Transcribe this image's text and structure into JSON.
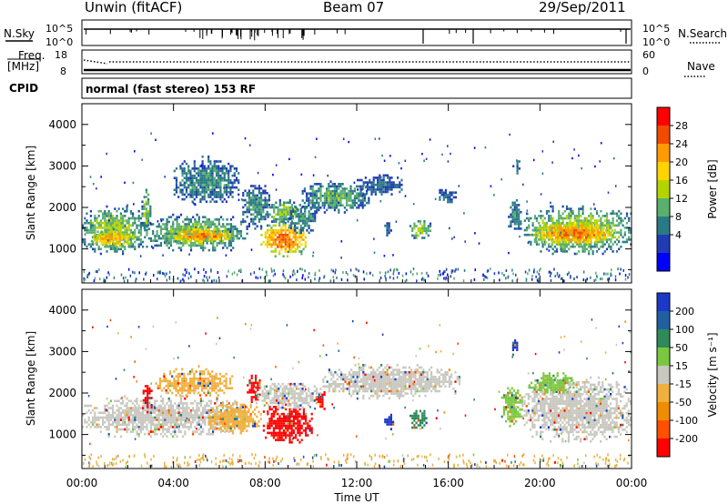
{
  "header": {
    "station": "Unwin (fitACF)",
    "beam": "Beam 07",
    "date": "29/Sep/2011"
  },
  "status_panels": {
    "nsky_label": "N.Sky",
    "nsky_ticks_left": [
      "10^5",
      "10^0"
    ],
    "nsky_ticks_right": [
      "10^5",
      "10^0"
    ],
    "nsearch_label": "N.Search",
    "freq_label": "Freq.",
    "freq_unit": "[MHz]",
    "freq_ticks": [
      "18",
      "8"
    ],
    "nave_label": "Nave",
    "nave_ticks": [
      "60",
      "0"
    ],
    "cpid_label": "CPID",
    "cpid_text": "normal (fast stereo) 153 RF"
  },
  "chart_data": [
    {
      "type": "heatmap",
      "name": "power",
      "ylabel": "Slant Range [km]",
      "yticks": [
        1000,
        2000,
        3000,
        4000
      ],
      "ylim": [
        180,
        4500
      ],
      "xlim": [
        0,
        24
      ],
      "colorbar": {
        "label": "Power [dB]",
        "ticks": [
          "28",
          "24",
          "20",
          "16",
          "12",
          "8",
          "4"
        ],
        "colors": [
          "#ff0000",
          "#f24a00",
          "#ff9a00",
          "#ffd400",
          "#b4d400",
          "#5aae6e",
          "#2a7a86",
          "#203cb4",
          "#0000ff"
        ]
      },
      "blobs": [
        {
          "t0": 0.0,
          "t1": 2.8,
          "r0": 900,
          "r1": 2050,
          "level": 14
        },
        {
          "t0": 0.3,
          "t1": 2.3,
          "r0": 1050,
          "r1": 1500,
          "level": 22
        },
        {
          "t0": 2.6,
          "t1": 2.95,
          "r0": 1400,
          "r1": 2450,
          "level": 14
        },
        {
          "t0": 2.8,
          "t1": 7.2,
          "r0": 950,
          "r1": 1850,
          "level": 13
        },
        {
          "t0": 3.8,
          "t1": 6.6,
          "r0": 1150,
          "r1": 1550,
          "level": 24
        },
        {
          "t0": 4.0,
          "t1": 6.8,
          "r0": 2100,
          "r1": 3250,
          "level": 9
        },
        {
          "t0": 7.0,
          "t1": 8.2,
          "r0": 1500,
          "r1": 2600,
          "level": 9
        },
        {
          "t0": 7.8,
          "t1": 9.8,
          "r0": 850,
          "r1": 1650,
          "level": 25
        },
        {
          "t0": 8.0,
          "t1": 9.6,
          "r0": 1650,
          "r1": 2200,
          "level": 14
        },
        {
          "t0": 9.0,
          "t1": 10.2,
          "r0": 1400,
          "r1": 2100,
          "level": 9
        },
        {
          "t0": 9.6,
          "t1": 12.5,
          "r0": 1900,
          "r1": 2650,
          "level": 11
        },
        {
          "t0": 12.0,
          "t1": 14.0,
          "r0": 2300,
          "r1": 2800,
          "level": 7
        },
        {
          "t0": 13.2,
          "t1": 13.5,
          "r0": 1350,
          "r1": 1700,
          "level": 8
        },
        {
          "t0": 14.3,
          "t1": 15.2,
          "r0": 1250,
          "r1": 1750,
          "level": 15
        },
        {
          "t0": 15.5,
          "t1": 16.3,
          "r0": 2100,
          "r1": 2500,
          "level": 7
        },
        {
          "t0": 18.6,
          "t1": 19.2,
          "r0": 1400,
          "r1": 2200,
          "level": 9
        },
        {
          "t0": 18.8,
          "t1": 19.1,
          "r0": 2800,
          "r1": 3250,
          "level": 6
        },
        {
          "t0": 19.3,
          "t1": 24.0,
          "r0": 900,
          "r1": 2050,
          "level": 15
        },
        {
          "t0": 19.7,
          "t1": 23.2,
          "r0": 1100,
          "r1": 1700,
          "level": 25
        }
      ]
    },
    {
      "type": "heatmap",
      "name": "velocity",
      "ylabel": "Slant Range [km]",
      "yticks": [
        1000,
        2000,
        3000,
        4000
      ],
      "ylim": [
        180,
        4500
      ],
      "xlim": [
        0,
        24
      ],
      "xlabel": "Time UT",
      "xticks": [
        "00:00",
        "04:00",
        "08:00",
        "12:00",
        "16:00",
        "20:00",
        "00:00"
      ],
      "colorbar": {
        "label": "Velocity [m s⁻¹]",
        "ticks": [
          "200",
          "100",
          "50",
          "15",
          "-15",
          "-50",
          "-100",
          "-200"
        ],
        "colors": [
          "#1c38c8",
          "#2060a0",
          "#2e8a5a",
          "#7ac840",
          "#c8c8c0",
          "#f0b040",
          "#f08c00",
          "#ff5000",
          "#ff0000"
        ]
      },
      "blobs": [
        {
          "t0": 0.0,
          "t1": 7.0,
          "r0": 950,
          "r1": 1950,
          "color": "#c8c8c0"
        },
        {
          "t0": 2.65,
          "t1": 3.0,
          "r0": 1550,
          "r1": 2250,
          "color": "#ff0000"
        },
        {
          "t0": 3.2,
          "t1": 6.6,
          "r0": 1950,
          "r1": 2600,
          "color": "#f0b040"
        },
        {
          "t0": 5.5,
          "t1": 7.8,
          "r0": 1050,
          "r1": 1800,
          "color": "#f0b040"
        },
        {
          "t0": 7.2,
          "t1": 7.8,
          "r0": 1800,
          "r1": 2500,
          "color": "#ff0000"
        },
        {
          "t0": 7.9,
          "t1": 10.0,
          "r0": 800,
          "r1": 1750,
          "color": "#ff0000"
        },
        {
          "t0": 7.5,
          "t1": 10.4,
          "r0": 1650,
          "r1": 2300,
          "color": "#c8c8c0"
        },
        {
          "t0": 10.2,
          "t1": 10.6,
          "r0": 1600,
          "r1": 2100,
          "color": "#ff0000"
        },
        {
          "t0": 10.5,
          "t1": 16.5,
          "r0": 1900,
          "r1": 2700,
          "color": "#c8c8c0"
        },
        {
          "t0": 13.2,
          "t1": 13.6,
          "r0": 1150,
          "r1": 1500,
          "color": "#1c38c8"
        },
        {
          "t0": 14.3,
          "t1": 15.1,
          "r0": 1100,
          "r1": 1650,
          "color": "#2e8a5a"
        },
        {
          "t0": 18.3,
          "t1": 19.2,
          "r0": 1200,
          "r1": 2200,
          "color": "#7ac840"
        },
        {
          "t0": 18.7,
          "t1": 19.0,
          "r0": 2900,
          "r1": 3350,
          "color": "#1c38c8"
        },
        {
          "t0": 19.2,
          "t1": 24.0,
          "r0": 850,
          "r1": 2400,
          "color": "#c8c8c0"
        },
        {
          "t0": 19.5,
          "t1": 21.5,
          "r0": 2000,
          "r1": 2500,
          "color": "#7ac840"
        }
      ]
    }
  ]
}
